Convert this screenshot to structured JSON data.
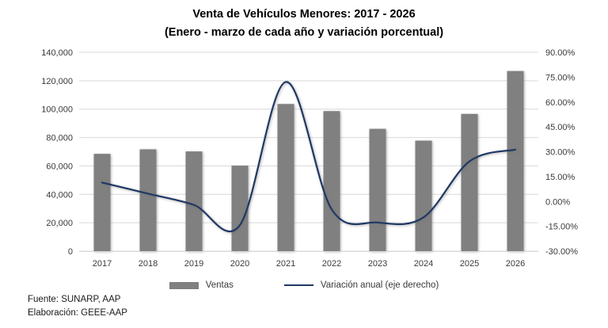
{
  "chart_data": {
    "type": "combo-bar-line",
    "title": "Venta de Vehículos Menores: 2017 - 2026",
    "subtitle": "(Enero - marzo de cada año y variación porcentual)",
    "categories": [
      "2017",
      "2018",
      "2019",
      "2020",
      "2021",
      "2022",
      "2023",
      "2024",
      "2025",
      "2026"
    ],
    "series": [
      {
        "name": "Ventas",
        "type": "bar",
        "axis": "left",
        "color": "#808080",
        "values": [
          68500,
          71700,
          70200,
          60200,
          103600,
          98600,
          86100,
          77800,
          96600,
          126800
        ]
      },
      {
        "name": "Variación anual (eje derecho)",
        "type": "line",
        "axis": "right",
        "smooth": true,
        "color": "#1F3864",
        "values": [
          11.4,
          4.7,
          -2.1,
          -14.3,
          72.1,
          -4.8,
          -12.7,
          -9.6,
          24.2,
          31.3
        ]
      }
    ],
    "left_axis": {
      "min": 0,
      "max": 140000,
      "step": 20000,
      "tick_labels": [
        "140,000",
        "120,000",
        "100,000",
        "80,000",
        "60,000",
        "40,000",
        "20,000",
        "0"
      ]
    },
    "right_axis": {
      "min": -30,
      "max": 90,
      "step": 15,
      "tick_labels": [
        "90.00%",
        "75.00%",
        "60.00%",
        "45.00%",
        "30.00%",
        "15.00%",
        "0.00%",
        "-15.00%",
        "-30.00%"
      ]
    },
    "grid": true,
    "legend_position": "bottom",
    "colors": {
      "grid": "#D9D9D9",
      "axis_line": "#D9D9D9",
      "axis_text": "#3a3a3a",
      "title_text": "#000000"
    }
  },
  "footer": {
    "source": "Fuente: SUNARP, AAP",
    "elaboration": "Elaboración: GEEE-AAP"
  }
}
